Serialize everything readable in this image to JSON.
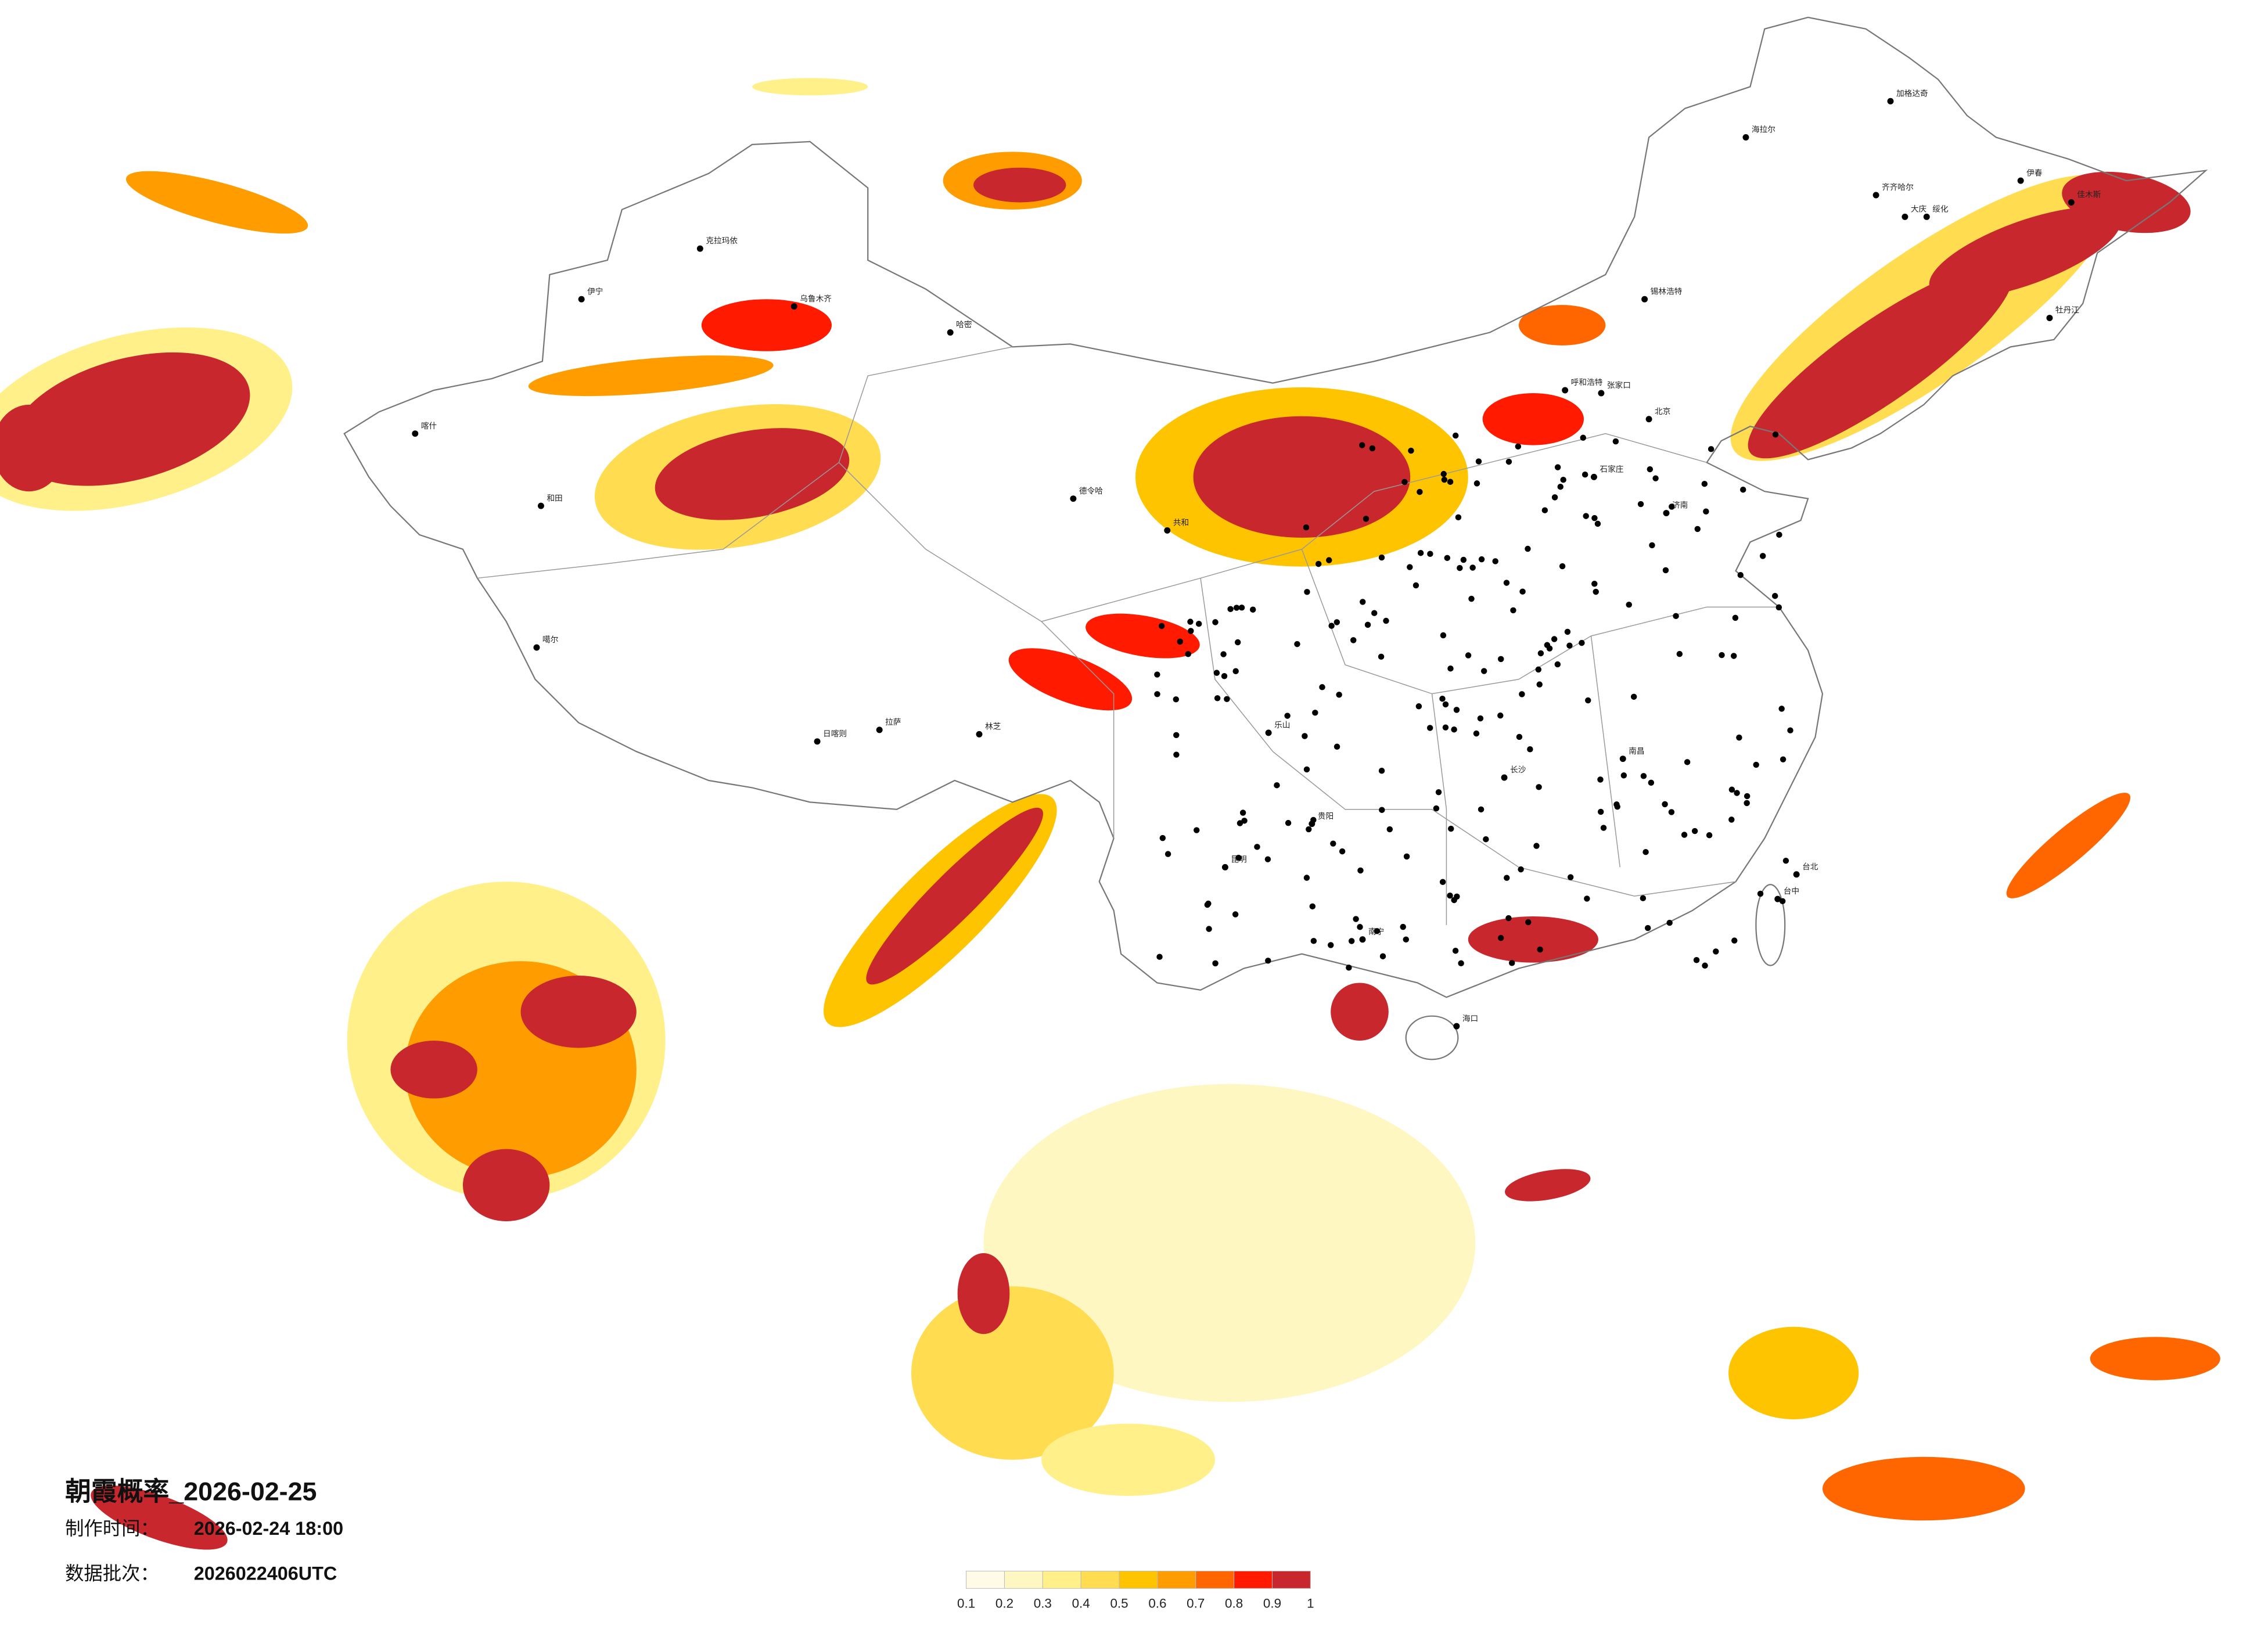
{
  "header": {
    "title": "朝霞概率_2026-02-25",
    "made_label": "制作时间：",
    "made_time": "2026-02-24 18:00",
    "batch_label": "数据批次：",
    "batch": "2026022406UTC"
  },
  "legend": {
    "ticks": [
      0.1,
      0.2,
      0.3,
      0.4,
      0.5,
      0.6,
      0.7,
      0.8,
      0.9,
      1
    ],
    "colors": [
      "#fffbe6",
      "#fff7c2",
      "#fff08a",
      "#ffdc50",
      "#ffc400",
      "#ff9c00",
      "#ff6600",
      "#ff1a00",
      "#c8282d"
    ]
  },
  "cities": [
    "海拉尔",
    "加格达奇",
    "齐齐哈尔",
    "大庆",
    "绥化",
    "伊春",
    "佳木斯",
    "牡丹江",
    "锡林浩特",
    "呼和浩特",
    "张家口",
    "北京",
    "石家庄",
    "济南",
    "克拉玛依",
    "乌鲁木齐",
    "伊宁",
    "哈密",
    "喀什",
    "和田",
    "德令哈",
    "共和",
    "噶尔",
    "日喀则",
    "拉萨",
    "林芝",
    "乐山",
    "昆明",
    "贵阳",
    "长沙",
    "南昌",
    "南宁",
    "海口",
    "台北",
    "台中"
  ]
}
